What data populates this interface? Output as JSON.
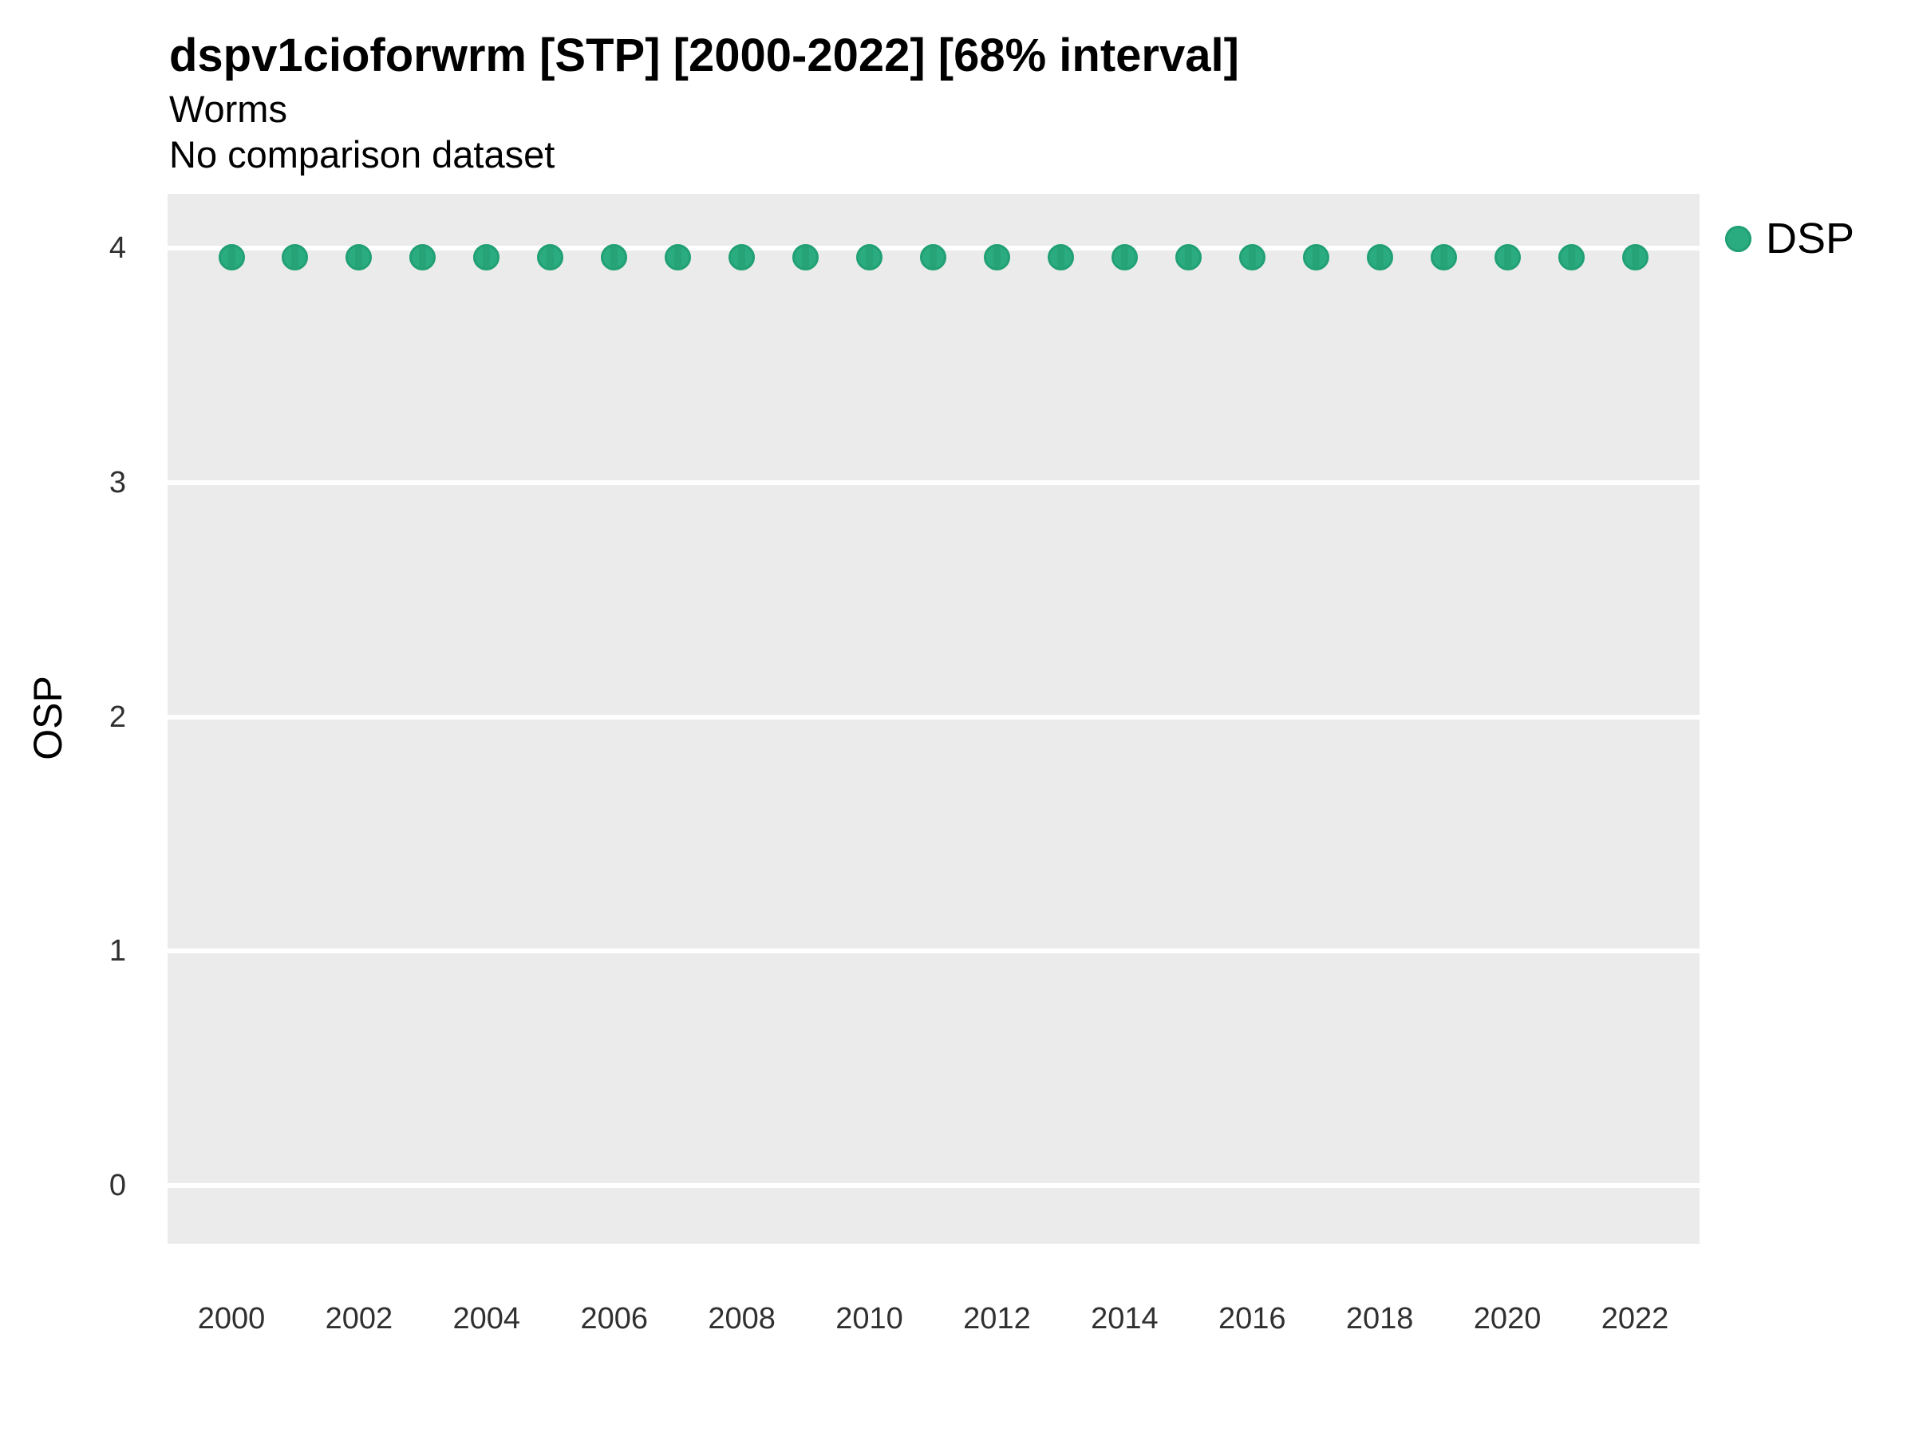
{
  "chart_data": {
    "type": "scatter",
    "title": "dspv1cioforwrm [STP] [2000-2022] [68% interval]",
    "subtitle": "Worms",
    "note": "No comparison dataset",
    "xlabel": "",
    "ylabel": "OSP",
    "x": [
      2000,
      2001,
      2002,
      2003,
      2004,
      2005,
      2006,
      2007,
      2008,
      2009,
      2010,
      2011,
      2012,
      2013,
      2014,
      2015,
      2016,
      2017,
      2018,
      2019,
      2020,
      2021,
      2022
    ],
    "series": [
      {
        "name": "DSP",
        "values": [
          3.96,
          3.96,
          3.96,
          3.96,
          3.96,
          3.96,
          3.96,
          3.96,
          3.96,
          3.96,
          3.96,
          3.96,
          3.96,
          3.96,
          3.96,
          3.96,
          3.96,
          3.96,
          3.96,
          3.96,
          3.96,
          3.96,
          3.96
        ]
      }
    ],
    "yticks": [
      0,
      1,
      2,
      3,
      4
    ],
    "xticks": [
      2000,
      2002,
      2004,
      2006,
      2008,
      2010,
      2012,
      2014,
      2016,
      2018,
      2020,
      2022
    ],
    "ylim": [
      -0.25,
      4.24
    ],
    "grid": "horizontal-major-only",
    "legend_position": "right",
    "interval": "68%",
    "colors": {
      "dot_fill": "#2BAC80",
      "dot_stripe": "#27A378",
      "dot_edge": "#21A173",
      "panel_bg": "#EBEBEB",
      "gridline": "#FFFFFF",
      "text": "#000000",
      "tick_text": "#303030"
    }
  }
}
